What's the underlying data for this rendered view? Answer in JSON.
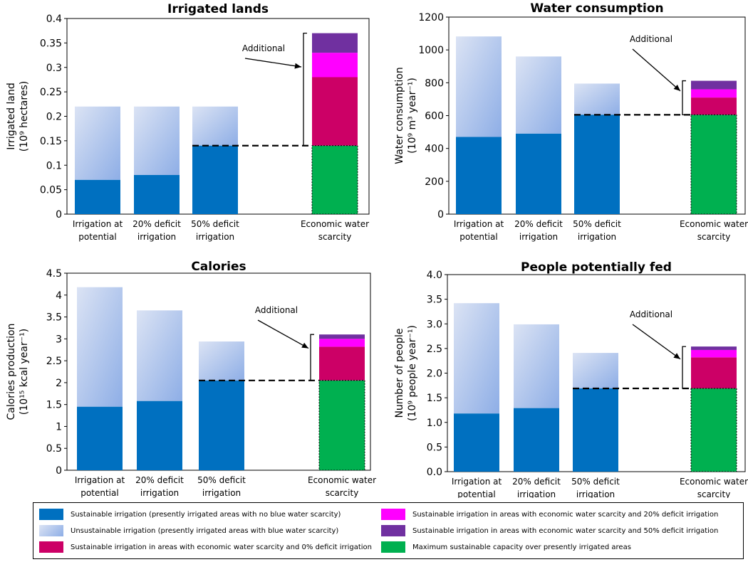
{
  "colors": {
    "sustainable": "#0070c0",
    "unsustainable_light": "#dbe3f4",
    "unsustainable_dark": "#8eaee6",
    "econ0": "#cc0066",
    "econ20": "#ff00ff",
    "econ50": "#7030a0",
    "max": "#00b050"
  },
  "categories": [
    "Irrigation at potential",
    "20% deficit irrigation",
    "50% deficit irrigation",
    "Economic water scarcity"
  ],
  "chart_data": [
    {
      "type": "bar",
      "title": "Irrigated lands",
      "ylabel_line1": "Irrigated land",
      "ylabel_line2": "(10⁹ hectares)",
      "ylim": [
        0,
        0.4
      ],
      "yticks": [
        "0",
        "0.05",
        "0.1",
        "0.15",
        "0.2",
        "0.25",
        "0.3",
        "0.35",
        "0.4"
      ],
      "xtick_labels": [
        [
          "Irrigation at",
          "potential"
        ],
        [
          "20% deficit",
          "irrigation"
        ],
        [
          "50% deficit",
          "irrigation"
        ],
        [
          "Economic water",
          "scarcity"
        ]
      ],
      "sustainable": [
        0.07,
        0.08,
        0.14
      ],
      "unsustainable": [
        0.15,
        0.14,
        0.08
      ],
      "econ": {
        "max": 0.14,
        "econ0": 0.14,
        "econ20": 0.05,
        "econ50": 0.04
      },
      "baseline": 0.14,
      "annotation": "Additional"
    },
    {
      "type": "bar",
      "title": "Water consumption",
      "ylabel_line1": "Water consumption",
      "ylabel_line2": "(10⁹ m³ year⁻¹)",
      "ylim": [
        0,
        1200
      ],
      "yticks": [
        "0",
        "200",
        "400",
        "600",
        "800",
        "1000",
        "1200"
      ],
      "xtick_labels": [
        [
          "Irrigation at",
          "potential"
        ],
        [
          "20% deficit",
          "irrigation"
        ],
        [
          "50% deficit",
          "irrigation"
        ],
        [
          "Economic water",
          "scarcity"
        ]
      ],
      "sustainable": [
        470,
        490,
        605
      ],
      "unsustainable": [
        612,
        470,
        190
      ],
      "econ": {
        "max": 605,
        "econ0": 105,
        "econ20": 50,
        "econ50": 52
      },
      "baseline": 605,
      "annotation": "Additional"
    },
    {
      "type": "bar",
      "title": "Calories",
      "ylabel_line1": "Calories production",
      "ylabel_line2": "(10¹⁵ kcal year⁻¹)",
      "ylim": [
        0,
        4.5
      ],
      "yticks": [
        "0",
        "0.5",
        "1",
        "1.5",
        "2",
        "2.5",
        "3",
        "3.5",
        "4",
        "4.5"
      ],
      "xtick_labels": [
        [
          "Irrigation at",
          "potential"
        ],
        [
          "20% deficit",
          "irrigation"
        ],
        [
          "50% deficit",
          "irrigation"
        ],
        [
          "Economic water",
          "scarcity"
        ]
      ],
      "sustainable": [
        1.45,
        1.58,
        2.05
      ],
      "unsustainable": [
        2.73,
        2.07,
        0.89
      ],
      "econ": {
        "max": 2.05,
        "econ0": 0.77,
        "econ20": 0.18,
        "econ50": 0.1
      },
      "baseline": 2.05,
      "annotation": "Additional"
    },
    {
      "type": "bar",
      "title": "People potentially fed",
      "ylabel_line1": "Number of people",
      "ylabel_line2": "(10⁹ people year⁻¹)",
      "ylim": [
        0,
        4.0
      ],
      "yticks": [
        "0.0",
        "0.5",
        "1.0",
        "1.5",
        "2.0",
        "2.5",
        "3.0",
        "3.5",
        "4.0"
      ],
      "xtick_labels": [
        [
          "Irrigation at",
          "potential"
        ],
        [
          "20% deficit",
          "irrigation"
        ],
        [
          "50% deficit",
          "irrigation"
        ],
        [
          "Economic water",
          "scarcity"
        ]
      ],
      "sustainable": [
        1.18,
        1.29,
        1.69
      ],
      "unsustainable": [
        2.24,
        1.7,
        0.72
      ],
      "econ": {
        "max": 1.69,
        "econ0": 0.63,
        "econ20": 0.15,
        "econ50": 0.07
      },
      "baseline": 1.69,
      "annotation": "Additional"
    }
  ],
  "legend": [
    {
      "key": "sustainable",
      "label": "Sustainable irrigation (presently irrigated areas with no blue water scarcity)"
    },
    {
      "key": "unsustainable",
      "label": "Unsustainable irrigation (presently irrigated areas with blue water scarcity)"
    },
    {
      "key": "econ0",
      "label": "Sustainable irrigation in areas with economic water scarcity and 0% deficit irrigation"
    },
    {
      "key": "econ20",
      "label": "Sustainable irrigation in areas with economic water scarcity and 20% deficit irrigation"
    },
    {
      "key": "econ50",
      "label": "Sustainable irrigation in areas with economic water scarcity and 50% deficit irrigation"
    },
    {
      "key": "max",
      "label": "Maximum sustainable capacity over presently irrigated areas"
    }
  ]
}
